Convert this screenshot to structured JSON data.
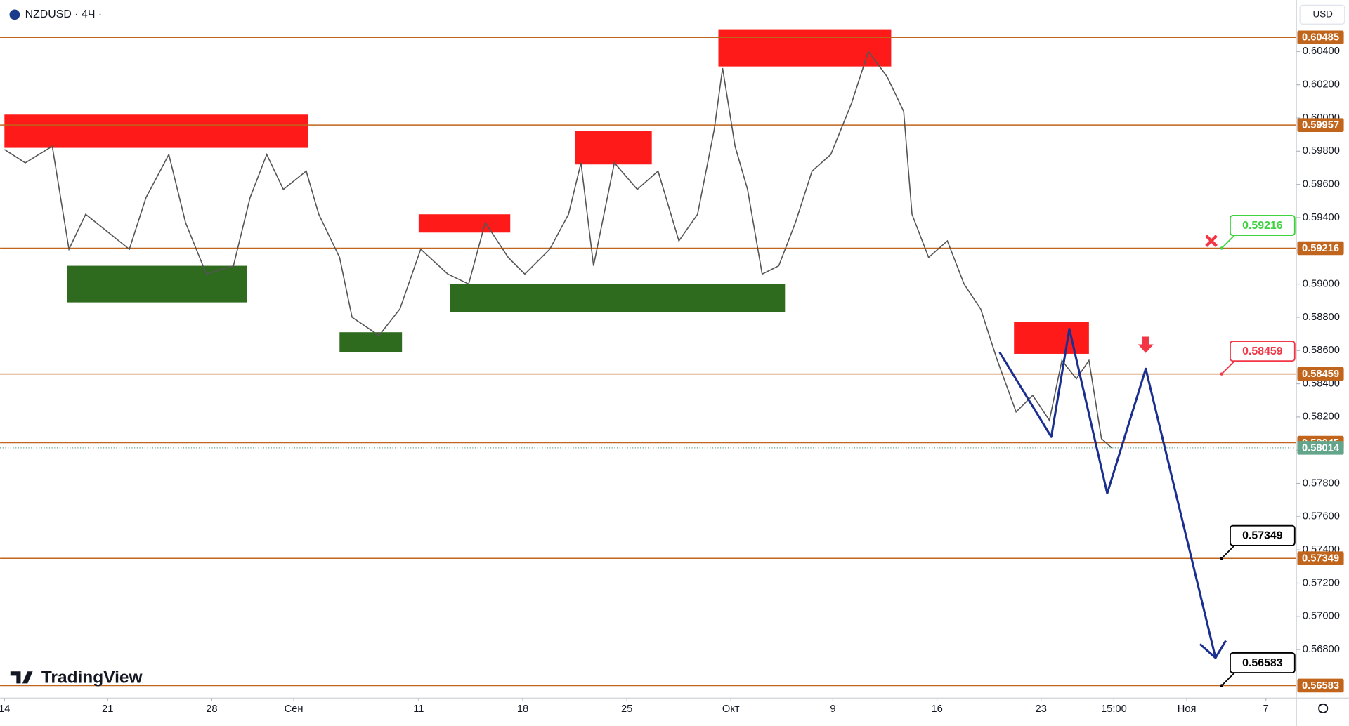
{
  "header": {
    "symbol": "NZDUSD · 4Ч ·",
    "currency": "USD",
    "brand": "TradingView"
  },
  "chart_data": {
    "type": "line",
    "color": "#555555",
    "x": [
      0,
      1.0,
      2.3,
      3.1,
      3.9,
      5.0,
      6.0,
      6.8,
      7.9,
      8.7,
      9.7,
      11.0,
      11.8,
      12.6,
      13.4,
      14.5,
      15.1,
      16.1,
      16.7,
      18.0,
      19.0,
      20.0,
      21.3,
      22.3,
      23.1,
      24.2,
      25.0,
      26.2,
      27.1,
      27.7,
      28.3,
      29.3,
      30.4,
      31.4,
      32.4,
      33.3,
      34.1,
      34.5,
      35.1,
      35.7,
      36.4,
      37.2,
      38.0,
      38.8,
      39.7,
      40.7,
      41.5,
      42.4,
      43.2,
      43.6,
      44.4,
      45.3,
      46.1,
      46.9,
      47.7,
      48.6,
      49.4,
      50.2,
      50.8,
      51.5,
      52.1,
      52.7,
      53.2
    ],
    "values": [
      0.5981,
      0.5973,
      0.5983,
      0.5921,
      0.5942,
      0.5931,
      0.5921,
      0.5952,
      0.5978,
      0.5937,
      0.5906,
      0.5911,
      0.5952,
      0.5978,
      0.5957,
      0.5968,
      0.5942,
      0.5916,
      0.588,
      0.5869,
      0.5885,
      0.5921,
      0.5906,
      0.59,
      0.5937,
      0.5916,
      0.5906,
      0.5921,
      0.5942,
      0.5973,
      0.5911,
      0.5973,
      0.5957,
      0.5968,
      0.5926,
      0.5942,
      0.5993,
      0.603,
      0.5983,
      0.5957,
      0.5906,
      0.5911,
      0.5937,
      0.5968,
      0.5978,
      0.6009,
      0.604,
      0.6025,
      0.6004,
      0.5942,
      0.5916,
      0.5926,
      0.59,
      0.5885,
      0.5854,
      0.5823,
      0.5833,
      0.5818,
      0.5854,
      0.5843,
      0.5854,
      0.5807,
      0.58014
    ],
    "xlim": [
      -0.21,
      62.07
    ],
    "ylim": [
      0.56508,
      0.6071
    ],
    "yticks": [
      {
        "value": 0.604,
        "label": "0.60400"
      },
      {
        "value": 0.602,
        "label": "0.60200"
      },
      {
        "value": 0.6,
        "label": "0.60000"
      },
      {
        "value": 0.598,
        "label": "0.59800"
      },
      {
        "value": 0.596,
        "label": "0.59600"
      },
      {
        "value": 0.594,
        "label": "0.59400"
      },
      {
        "value": 0.592,
        "label": "0.59200"
      },
      {
        "value": 0.59,
        "label": "0.59000"
      },
      {
        "value": 0.588,
        "label": "0.58800"
      },
      {
        "value": 0.586,
        "label": "0.58600"
      },
      {
        "value": 0.584,
        "label": "0.58400"
      },
      {
        "value": 0.582,
        "label": "0.58200"
      },
      {
        "value": 0.58,
        "label": "0.58000"
      },
      {
        "value": 0.578,
        "label": "0.57800"
      },
      {
        "value": 0.576,
        "label": "0.57600"
      },
      {
        "value": 0.574,
        "label": "0.57400"
      },
      {
        "value": 0.572,
        "label": "0.57200"
      },
      {
        "value": 0.57,
        "label": "0.57000"
      },
      {
        "value": 0.568,
        "label": "0.56800"
      }
    ],
    "xticks": [
      {
        "value": 0,
        "label": "14"
      },
      {
        "value": 4.96,
        "label": "21"
      },
      {
        "value": 9.96,
        "label": "28"
      },
      {
        "value": 13.9,
        "label": "Сен"
      },
      {
        "value": 19.9,
        "label": "11"
      },
      {
        "value": 24.9,
        "label": "18"
      },
      {
        "value": 29.9,
        "label": "25"
      },
      {
        "value": 34.9,
        "label": "Окт"
      },
      {
        "value": 39.8,
        "label": "9"
      },
      {
        "value": 44.8,
        "label": "16"
      },
      {
        "value": 49.8,
        "label": "23"
      },
      {
        "value": 53.3,
        "label": "15:00"
      },
      {
        "value": 56.8,
        "label": "Ноя"
      },
      {
        "value": 60.6,
        "label": "7"
      }
    ],
    "levels": [
      0.60485,
      0.59957,
      0.59216,
      0.58459,
      0.58045,
      0.57349,
      0.56583
    ],
    "level_color": "#c0651b",
    "last_price": 0.58014,
    "last_price_color": "#62a58b",
    "zones": [
      {
        "x": [
          0,
          14.6
        ],
        "y": [
          0.5982,
          0.6002
        ],
        "color": "#ff1a1a"
      },
      {
        "x": [
          3.0,
          11.65
        ],
        "y": [
          0.5889,
          0.5911
        ],
        "color": "#2e6b1e"
      },
      {
        "x": [
          19.9,
          24.3
        ],
        "y": [
          0.5931,
          0.5942
        ],
        "color": "#ff1a1a"
      },
      {
        "x": [
          16.1,
          19.1
        ],
        "y": [
          0.5859,
          0.5871
        ],
        "color": "#2e6b1e"
      },
      {
        "x": [
          21.4,
          37.5
        ],
        "y": [
          0.5883,
          0.59
        ],
        "color": "#2e6b1e"
      },
      {
        "x": [
          27.4,
          31.1
        ],
        "y": [
          0.5972,
          0.5992
        ],
        "color": "#ff1a1a"
      },
      {
        "x": [
          34.3,
          42.6
        ],
        "y": [
          0.6031,
          0.6053
        ],
        "color": "#ff1a1a"
      },
      {
        "x": [
          48.5,
          52.1
        ],
        "y": [
          0.5858,
          0.5877
        ],
        "color": "#ff1a1a"
      }
    ],
    "projection": {
      "x": [
        47.81,
        50.29,
        51.16,
        52.98,
        54.83,
        58.18
      ],
      "values": [
        0.5859,
        0.5808,
        0.5873,
        0.5774,
        0.5849,
        0.5675
      ],
      "color": "#1a2f8f"
    },
    "markers": [
      {
        "type": "cross",
        "x": 57.98,
        "y": 0.5926,
        "color": "#f23645"
      },
      {
        "type": "arrow-down",
        "x": 54.83,
        "y": 0.5858,
        "color": "#f23645"
      }
    ],
    "callouts": [
      {
        "value": 0.59216,
        "color": "#3fd23f"
      },
      {
        "value": 0.58459,
        "color": "#f23645"
      },
      {
        "value": 0.57349,
        "color": "#000000"
      },
      {
        "value": 0.56583,
        "color": "#000000"
      }
    ]
  }
}
